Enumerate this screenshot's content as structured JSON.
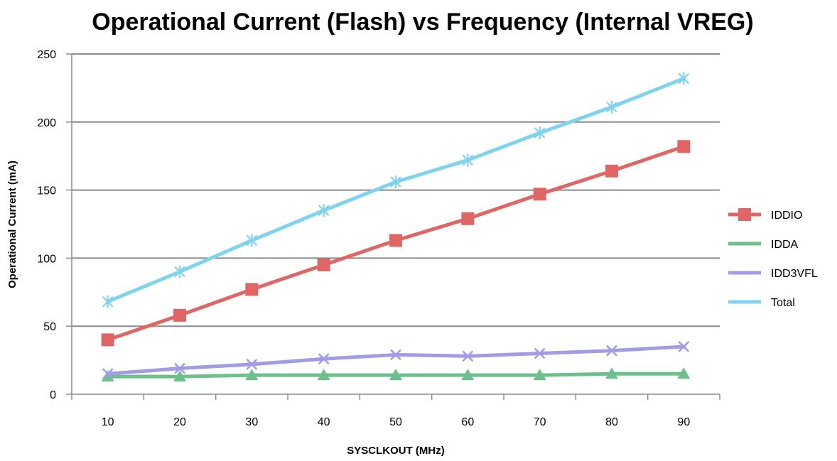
{
  "chart_data": {
    "type": "line",
    "title": "Operational Current (Flash) vs Frequency (Internal VREG)",
    "xlabel": "SYSCLKOUT (MHz)",
    "ylabel": "Operational Current (mA)",
    "x": [
      10,
      20,
      30,
      40,
      50,
      60,
      70,
      80,
      90
    ],
    "ylim": [
      0,
      250
    ],
    "yticks": [
      0,
      50,
      100,
      150,
      200,
      250
    ],
    "grid": true,
    "legend_position": "right",
    "series": [
      {
        "name": "IDDIO",
        "color": "#e06666",
        "marker": "square",
        "values": [
          40,
          58,
          77,
          95,
          113,
          129,
          147,
          164,
          182
        ]
      },
      {
        "name": "IDDA",
        "color": "#6cc08b",
        "marker": "triangle",
        "values": [
          13,
          13,
          14,
          14,
          14,
          14,
          14,
          15,
          15
        ]
      },
      {
        "name": "IDD3VFL",
        "color": "#a29be6",
        "marker": "x",
        "values": [
          15,
          19,
          22,
          26,
          29,
          28,
          30,
          32,
          35
        ]
      },
      {
        "name": "Total",
        "color": "#7fd3ef",
        "marker": "asterisk",
        "values": [
          68,
          90,
          113,
          135,
          156,
          172,
          192,
          211,
          232
        ]
      }
    ]
  }
}
